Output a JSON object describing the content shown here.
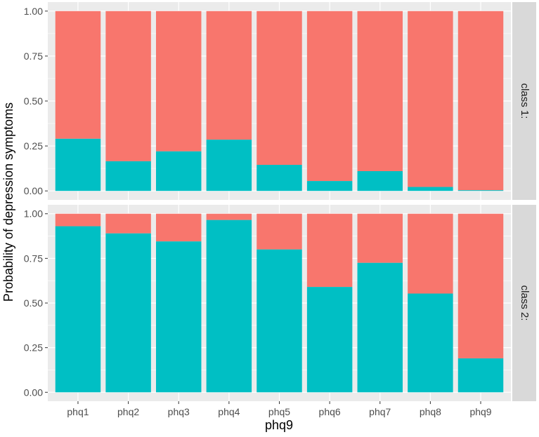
{
  "chart_data": {
    "type": "bar",
    "stacked": true,
    "xlabel": "phq9",
    "ylabel": "Probability of depression symptoms",
    "categories": [
      "phq1",
      "phq2",
      "phq3",
      "phq4",
      "phq5",
      "phq6",
      "phq7",
      "phq8",
      "phq9"
    ],
    "ylim": [
      0,
      1
    ],
    "yticks": [
      0.0,
      0.25,
      0.5,
      0.75,
      1.0
    ],
    "ytick_labels": [
      "0.00",
      "0.25",
      "0.50",
      "0.75",
      "1.00"
    ],
    "colors": {
      "bottom": "#00BFC4",
      "top": "#F8766D",
      "panel": "#EBEBEB",
      "strip": "#D9D9D9",
      "grid": "#FFFFFF"
    },
    "panels": [
      {
        "strip_label": "class 1:",
        "series": [
          {
            "name": "bottom",
            "values": [
              0.29,
              0.165,
              0.22,
              0.285,
              0.145,
              0.055,
              0.11,
              0.022,
              0.004
            ]
          },
          {
            "name": "top",
            "values": [
              0.71,
              0.835,
              0.78,
              0.715,
              0.855,
              0.945,
              0.89,
              0.978,
              0.996
            ]
          }
        ]
      },
      {
        "strip_label": "class 2:",
        "series": [
          {
            "name": "bottom",
            "values": [
              0.93,
              0.89,
              0.845,
              0.965,
              0.8,
              0.59,
              0.725,
              0.553,
              0.19
            ]
          },
          {
            "name": "top",
            "values": [
              0.07,
              0.11,
              0.155,
              0.035,
              0.2,
              0.41,
              0.275,
              0.447,
              0.81
            ]
          }
        ]
      }
    ]
  }
}
